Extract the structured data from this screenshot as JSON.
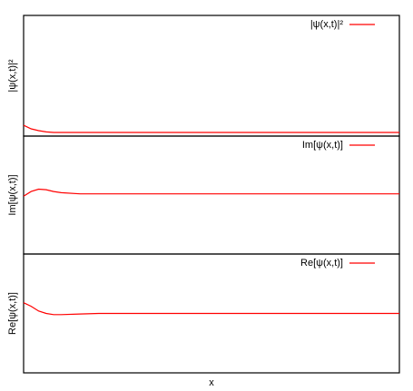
{
  "chart_data": [
    {
      "type": "line",
      "ylabel": "|ψ(x,t)|²",
      "x": [
        0,
        0.02,
        0.04,
        0.06,
        0.08,
        0.1,
        0.15,
        0.2,
        1
      ],
      "xlim": [
        0,
        1
      ],
      "ylim": [
        0,
        1
      ],
      "series": [
        {
          "name": "|ψ(x,t)|²",
          "color": "#ff0000",
          "values": [
            0.09,
            0.06,
            0.045,
            0.035,
            0.03,
            0.03,
            0.03,
            0.03,
            0.03
          ]
        }
      ],
      "legend": "upper right"
    },
    {
      "type": "line",
      "ylabel": "Im[ψ(x,t)]",
      "x": [
        0,
        0.02,
        0.04,
        0.06,
        0.08,
        0.1,
        0.15,
        0.2,
        1
      ],
      "xlim": [
        0,
        1
      ],
      "ylim": [
        0,
        1
      ],
      "series": [
        {
          "name": "Im[ψ(x,t)]",
          "color": "#ff0000",
          "values": [
            0.49,
            0.53,
            0.55,
            0.545,
            0.53,
            0.52,
            0.51,
            0.51,
            0.51
          ]
        }
      ],
      "legend": "upper right"
    },
    {
      "type": "line",
      "ylabel": "Re[ψ(x,t)]",
      "xlabel": "x",
      "x": [
        0,
        0.02,
        0.04,
        0.06,
        0.08,
        0.1,
        0.15,
        0.2,
        1
      ],
      "xlim": [
        0,
        1
      ],
      "ylim": [
        0,
        1
      ],
      "series": [
        {
          "name": "Re[ψ(x,t)]",
          "color": "#ff0000",
          "values": [
            0.59,
            0.56,
            0.52,
            0.5,
            0.49,
            0.49,
            0.495,
            0.5,
            0.5
          ]
        }
      ],
      "legend": "upper right"
    }
  ]
}
